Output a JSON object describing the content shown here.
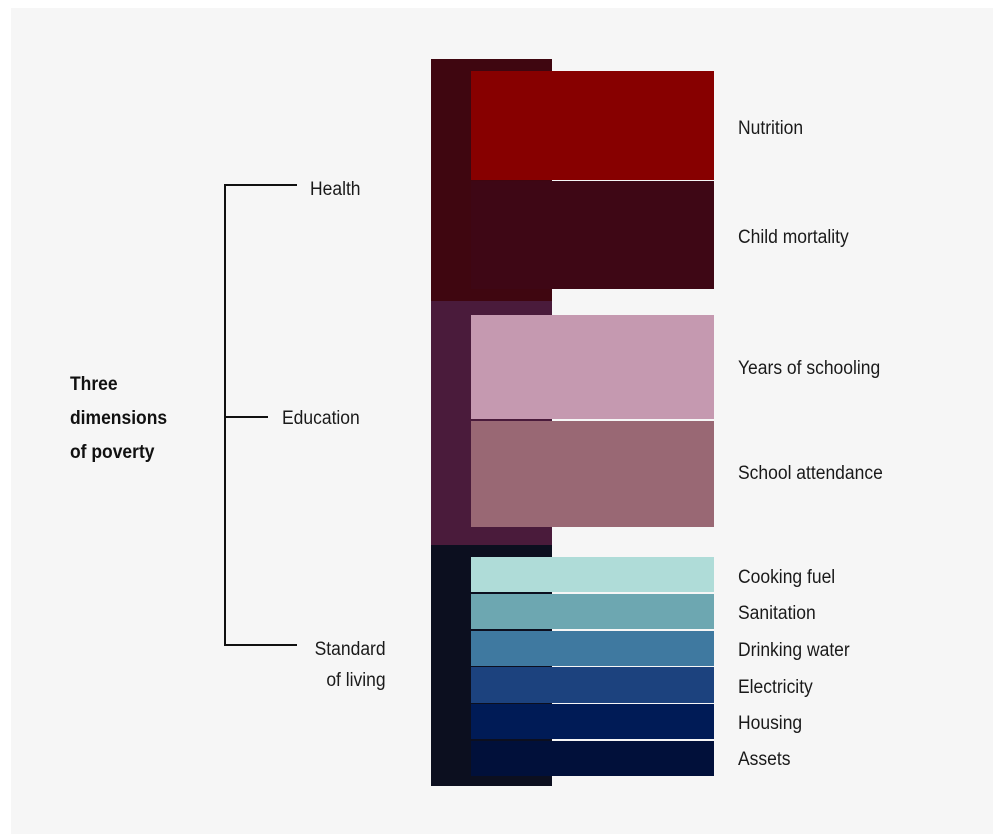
{
  "title": "Three\ndimensions\nof poverty",
  "dimensions": [
    {
      "label": "Health",
      "color": "#3f0610",
      "indicators": [
        {
          "label": "Nutrition",
          "color": "#870000"
        },
        {
          "label": "Child mortality",
          "color": "#3e0715"
        }
      ]
    },
    {
      "label": "Education",
      "color": "#4a1b3b",
      "indicators": [
        {
          "label": "Years of schooling",
          "color": "#c599b0"
        },
        {
          "label": "School attendance",
          "color": "#996874"
        }
      ]
    },
    {
      "label": "Standard\nof living",
      "color": "#0c0f1f",
      "indicators": [
        {
          "label": "Cooking fuel",
          "color": "#afdcd8"
        },
        {
          "label": "Sanitation",
          "color": "#6da7b1"
        },
        {
          "label": "Drinking water",
          "color": "#3f79a0"
        },
        {
          "label": "Electricity",
          "color": "#1c427e"
        },
        {
          "label": "Housing",
          "color": "#001b56"
        },
        {
          "label": "Assets",
          "color": "#01103a"
        }
      ]
    }
  ]
}
